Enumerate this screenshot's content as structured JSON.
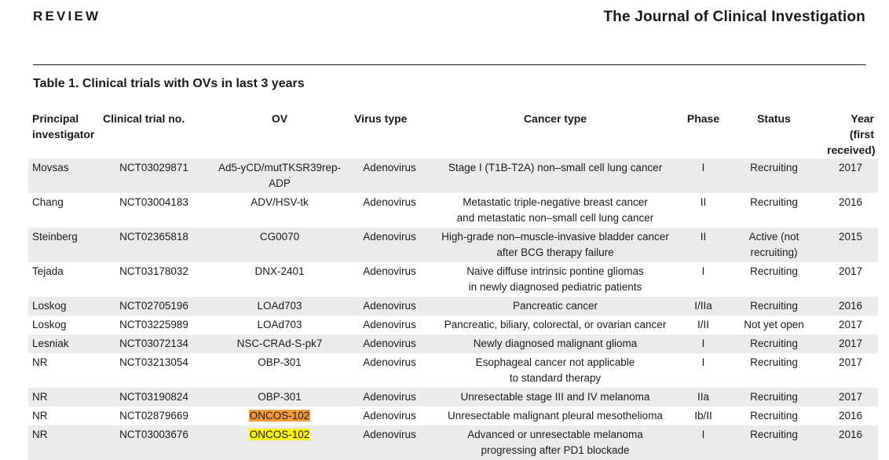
{
  "header": {
    "section": "REVIEW",
    "journal": "The Journal of Clinical Investigation"
  },
  "table": {
    "caption": "Table 1. Clinical trials with OVs in last 3 years",
    "columns": {
      "pi": "Principal\ninvestigator",
      "trial": "Clinical trial no.",
      "ov": "OV",
      "virus": "Virus type",
      "cancer": "Cancer type",
      "phase": "Phase",
      "status": "Status",
      "year": "Year\n(first received)"
    },
    "rows": [
      {
        "pi": "Movsas",
        "trial": "NCT03029871",
        "ov": "Ad5-yCD/mutTKSR39rep-ADP",
        "virus": "Adenovirus",
        "cancer": "Stage I (T1B-T2A) non–small cell lung cancer",
        "phase": "I",
        "status": "Recruiting",
        "year": "2017"
      },
      {
        "pi": "Chang",
        "trial": "NCT03004183",
        "ov": "ADV/HSV-tk",
        "virus": "Adenovirus",
        "cancer": "Metastatic triple-negative breast cancer\nand metastatic non–small cell lung cancer",
        "phase": "II",
        "status": "Recruiting",
        "year": "2016"
      },
      {
        "pi": "Steinberg",
        "trial": "NCT02365818",
        "ov": "CG0070",
        "virus": "Adenovirus",
        "cancer": "High-grade non–muscle-invasive bladder cancer\nafter BCG therapy failure",
        "phase": "II",
        "status": "Active (not recruiting)",
        "year": "2015"
      },
      {
        "pi": "Tejada",
        "trial": "NCT03178032",
        "ov": "DNX-2401",
        "virus": "Adenovirus",
        "cancer": "Naive diffuse intrinsic pontine gliomas\nin newly diagnosed pediatric patients",
        "phase": "I",
        "status": "Recruiting",
        "year": "2017"
      },
      {
        "pi": "Loskog",
        "trial": "NCT02705196",
        "ov": "LOAd703",
        "virus": "Adenovirus",
        "cancer": "Pancreatic cancer",
        "phase": "I/IIa",
        "status": "Recruiting",
        "year": "2016"
      },
      {
        "pi": "Loskog",
        "trial": "NCT03225989",
        "ov": "LOAd703",
        "virus": "Adenovirus",
        "cancer": "Pancreatic, biliary, colorectal, or ovarian cancer",
        "phase": "I/II",
        "status": "Not yet open",
        "year": "2017"
      },
      {
        "pi": "Lesniak",
        "trial": "NCT03072134",
        "ov": "NSC-CRAd-S-pk7",
        "virus": "Adenovirus",
        "cancer": "Newly diagnosed malignant glioma",
        "phase": "I",
        "status": "Recruiting",
        "year": "2017"
      },
      {
        "pi": "NR",
        "trial": "NCT03213054",
        "ov": "OBP-301",
        "virus": "Adenovirus",
        "cancer": "Esophageal cancer not applicable\nto standard therapy",
        "phase": "I",
        "status": "Recruiting",
        "year": "2017"
      },
      {
        "pi": "NR",
        "trial": "NCT03190824",
        "ov": "OBP-301",
        "virus": "Adenovirus",
        "cancer": "Unresectable stage III and IV melanoma",
        "phase": "IIa",
        "status": "Recruiting",
        "year": "2017"
      },
      {
        "pi": "NR",
        "trial": "NCT02879669",
        "ov": "ONCOS-102",
        "virus": "Adenovirus",
        "cancer": "Unresectable malignant pleural mesothelioma",
        "phase": "Ib/II",
        "status": "Recruiting",
        "year": "2016"
      },
      {
        "pi": "NR",
        "trial": "NCT03003676",
        "ov": "ONCOS-102",
        "virus": "Adenovirus",
        "cancer": "Advanced or unresectable melanoma\nprogressing after PD1 blockade",
        "phase": "I",
        "status": "Recruiting",
        "year": "2016"
      }
    ],
    "highlight_colors": {
      "orange": "#f59a3b",
      "yellow": "#fff21a"
    },
    "row_shade_color": "#ebebeb"
  }
}
